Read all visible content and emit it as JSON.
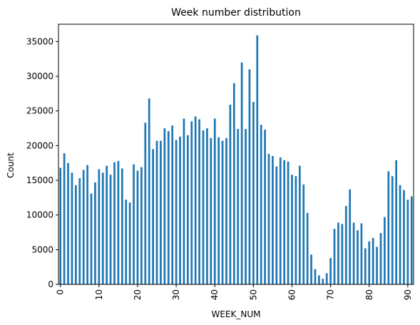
{
  "chart_data": {
    "type": "bar",
    "title": "Week number distribution",
    "xlabel": "WEEK_NUM",
    "ylabel": "Count",
    "bar_color": "#1f77b4",
    "grid": false,
    "ylim": [
      0,
      37500
    ],
    "y_ticks": [
      0,
      5000,
      10000,
      15000,
      20000,
      25000,
      30000,
      35000
    ],
    "x_tick_labels": [
      "0",
      "10",
      "20",
      "30",
      "40",
      "50",
      "60",
      "70",
      "80",
      "90"
    ],
    "x_tick_categories": [
      0,
      10,
      20,
      30,
      40,
      50,
      60,
      70,
      80,
      90
    ],
    "categories": [
      0,
      1,
      2,
      3,
      4,
      5,
      6,
      7,
      8,
      9,
      10,
      11,
      12,
      13,
      14,
      15,
      16,
      17,
      18,
      19,
      20,
      21,
      22,
      23,
      24,
      25,
      26,
      27,
      28,
      29,
      30,
      31,
      32,
      33,
      34,
      35,
      36,
      37,
      38,
      39,
      40,
      41,
      42,
      43,
      44,
      45,
      46,
      47,
      48,
      49,
      50,
      51,
      52,
      53,
      54,
      55,
      56,
      57,
      58,
      59,
      60,
      61,
      62,
      63,
      64,
      65,
      66,
      67,
      68,
      69,
      70,
      71,
      72,
      73,
      74,
      75,
      76,
      77,
      78,
      79,
      80,
      81,
      82,
      83,
      84,
      85,
      86,
      87,
      88,
      89,
      90,
      91
    ],
    "values": [
      16800,
      18900,
      17500,
      16100,
      14300,
      15300,
      16500,
      17200,
      13100,
      14700,
      16600,
      16100,
      17100,
      15800,
      17600,
      17800,
      16700,
      12200,
      11800,
      17300,
      16400,
      16900,
      23300,
      26800,
      19500,
      20700,
      20700,
      22500,
      22100,
      22900,
      20800,
      21300,
      23900,
      21500,
      23500,
      24200,
      23800,
      22200,
      22500,
      21100,
      23900,
      21200,
      20700,
      21100,
      25900,
      29000,
      22400,
      32000,
      22400,
      31000,
      26300,
      35900,
      23000,
      22300,
      18800,
      18500,
      17000,
      18300,
      17900,
      17700,
      15800,
      15600,
      17100,
      14400,
      10300,
      4300,
      2200,
      1300,
      800,
      1600,
      3800,
      8000,
      8900,
      8700,
      11300,
      13700,
      8900,
      7800,
      8800,
      5200,
      6200,
      6700,
      5400,
      7400,
      9700,
      16300,
      15600,
      17900,
      14300,
      13600,
      12200,
      12700
    ]
  }
}
